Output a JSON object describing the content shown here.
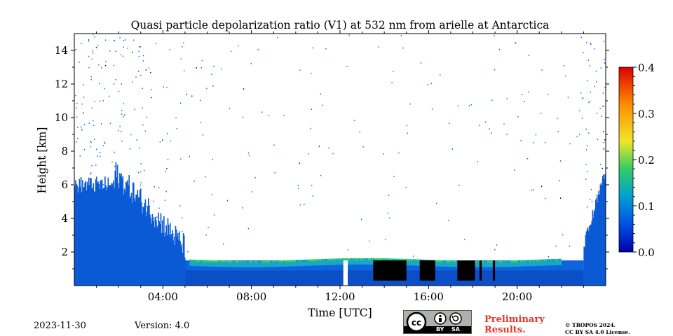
{
  "chart_data": {
    "type": "heatmap",
    "title": "Quasi particle depolarization ratio (V1) at 532 nm from arielle at Antarctica",
    "xlabel": "Time [UTC]",
    "ylabel": "Height [km]",
    "xlim": [
      0,
      24
    ],
    "ylim": [
      0,
      15
    ],
    "x_ticks": [
      4,
      8,
      12,
      16,
      20
    ],
    "x_tick_labels": [
      "04:00",
      "08:00",
      "12:00",
      "16:00",
      "20:00"
    ],
    "y_ticks": [
      2,
      4,
      6,
      8,
      10,
      12,
      14
    ],
    "y_tick_labels": [
      "2",
      "4",
      "6",
      "8",
      "10",
      "12",
      "14"
    ],
    "colorbar": {
      "range": [
        0.0,
        0.4
      ],
      "ticks": [
        0.0,
        0.1,
        0.2,
        0.3,
        0.4
      ],
      "tick_labels": [
        "0.0",
        "0.1",
        "0.2",
        "0.3",
        "0.4"
      ],
      "colormap": [
        "#0000aa",
        "#0050e6",
        "#00a0d2",
        "#32cd64",
        "#f0e628",
        "#ff8c00",
        "#dc0000"
      ]
    },
    "features": [
      {
        "name": "boundary-layer",
        "time_range": [
          0,
          23
        ],
        "top_height_km": 1.5,
        "value": 0.03
      },
      {
        "name": "mixed-layer-top",
        "time_range": [
          5.2,
          22
        ],
        "top_height_km": 1.6,
        "value": 0.15
      },
      {
        "name": "deep-low-depol-cloud-early",
        "time_range": [
          0,
          5
        ],
        "top_height_km": 6,
        "value": 0.03
      },
      {
        "name": "deep-low-depol-cloud-late",
        "time_range": [
          23,
          24
        ],
        "top_height_km": 6,
        "value": 0.03
      },
      {
        "name": "no-data-gap",
        "time_range": [
          12.15,
          12.35
        ],
        "top_height_km": 1.5
      },
      {
        "name": "masked-region",
        "time_range": [
          13.4,
          18.9
        ],
        "top_height_km": 1.5,
        "value": "masked"
      }
    ]
  },
  "footer": {
    "date": "2023-11-30",
    "version": "Version: 4.0",
    "preliminary_line1": "Preliminary",
    "preliminary_line2": "Results.",
    "copyright_line1": "© TROPOS 2024.",
    "copyright_line2": "CC BY SA 4.0 License.",
    "cc_badge": {
      "icon": "cc-icon",
      "by": "BY",
      "sa": "SA"
    }
  }
}
